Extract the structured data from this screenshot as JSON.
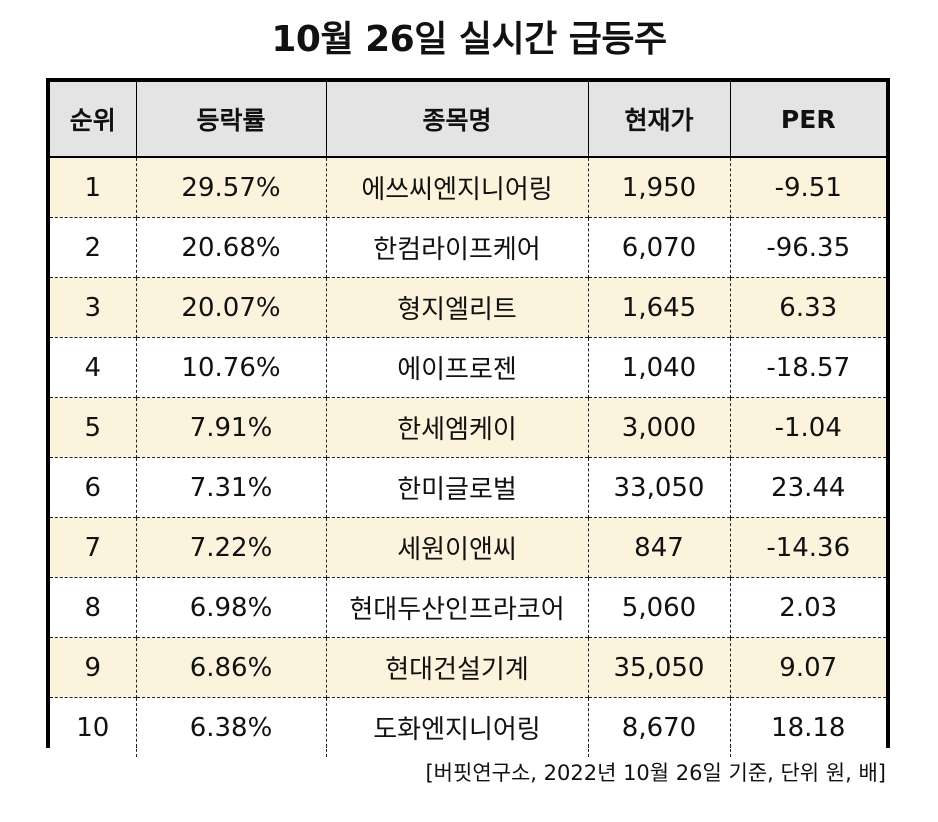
{
  "title": "10월 26일 실시간 급등주",
  "table": {
    "headers": [
      "순위",
      "등락률",
      "종목명",
      "현재가",
      "PER"
    ],
    "rows": [
      [
        "1",
        "29.57%",
        "에쓰씨엔지니어링",
        "1,950",
        "-9.51"
      ],
      [
        "2",
        "20.68%",
        "한컴라이프케어",
        "6,070",
        "-96.35"
      ],
      [
        "3",
        "20.07%",
        "형지엘리트",
        "1,645",
        "6.33"
      ],
      [
        "4",
        "10.76%",
        "에이프로젠",
        "1,040",
        "-18.57"
      ],
      [
        "5",
        "7.91%",
        "한세엠케이",
        "3,000",
        "-1.04"
      ],
      [
        "6",
        "7.31%",
        "한미글로벌",
        "33,050",
        "23.44"
      ],
      [
        "7",
        "7.22%",
        "세원이앤씨",
        "847",
        "-14.36"
      ],
      [
        "8",
        "6.98%",
        "현대두산인프라코어",
        "5,060",
        "2.03"
      ],
      [
        "9",
        "6.86%",
        "현대건설기계",
        "35,050",
        "9.07"
      ],
      [
        "10",
        "6.38%",
        "도화엔지니어링",
        "8,670",
        "18.18"
      ]
    ]
  },
  "source": "[버핏연구소, 2022년 10월 26일 기준, 단위 원, 배]",
  "colors": {
    "header_bg": "#e4e4e4",
    "odd_row_bg": "#fbf3dc",
    "even_row_bg": "#ffffff",
    "border": "#000000"
  }
}
